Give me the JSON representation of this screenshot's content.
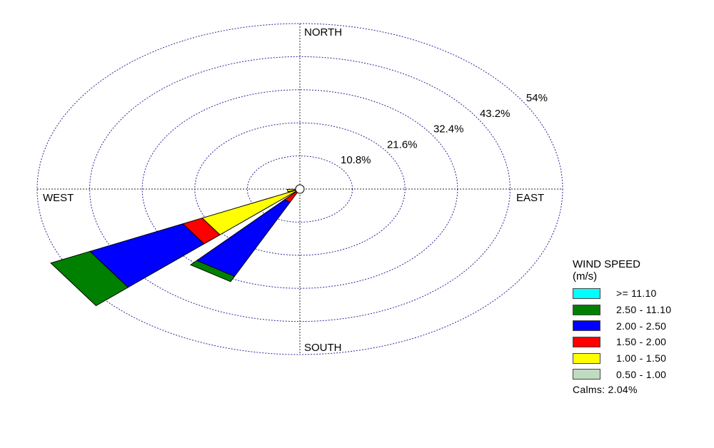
{
  "chart_data": {
    "type": "wind-rose",
    "directions": [
      "NORTH",
      "EAST",
      "SOUTH",
      "WEST"
    ],
    "ring_labels": [
      "10.8%",
      "21.6%",
      "32.4%",
      "43.2%",
      "54%"
    ],
    "rings": [
      10.8,
      21.6,
      32.4,
      43.2,
      54
    ],
    "legend_title": [
      "WIND SPEED",
      "(m/s)"
    ],
    "speed_bins": [
      {
        "label": ">= 11.10",
        "color": "#00ffff"
      },
      {
        "label": "2.50 - 11.10",
        "color": "#008000"
      },
      {
        "label": "2.00 - 2.50",
        "color": "#0000ff"
      },
      {
        "label": "1.50 - 2.00",
        "color": "#ff0000"
      },
      {
        "label": "1.00 - 1.50",
        "color": "#ffff00"
      },
      {
        "label": "0.50 - 1.00",
        "color": "#c0dcc0"
      }
    ],
    "calms_label": "Calms: 2.04%",
    "sectors": [
      {
        "direction_deg": 236.25,
        "cumulative_percent": [
          0,
          22.2,
          26.6,
          47.7,
          56.6
        ],
        "bins": [
          "0.50 - 1.00",
          "1.00 - 1.50",
          "1.50 - 2.00",
          "2.00 - 2.50",
          "2.50 - 11.10"
        ]
      },
      {
        "direction_deg": 213.75,
        "cumulative_percent": [
          0,
          0,
          4.7,
          31.5,
          33.4
        ],
        "bins": [
          "0.50 - 1.00",
          "1.00 - 1.50",
          "1.50 - 2.00",
          "2.00 - 2.50",
          "2.50 - 11.10"
        ]
      },
      {
        "direction_deg": 258.75,
        "cumulative_percent": [
          0,
          2.6
        ],
        "bins": [
          "0.50 - 1.00",
          "1.00 - 1.50"
        ]
      }
    ]
  }
}
